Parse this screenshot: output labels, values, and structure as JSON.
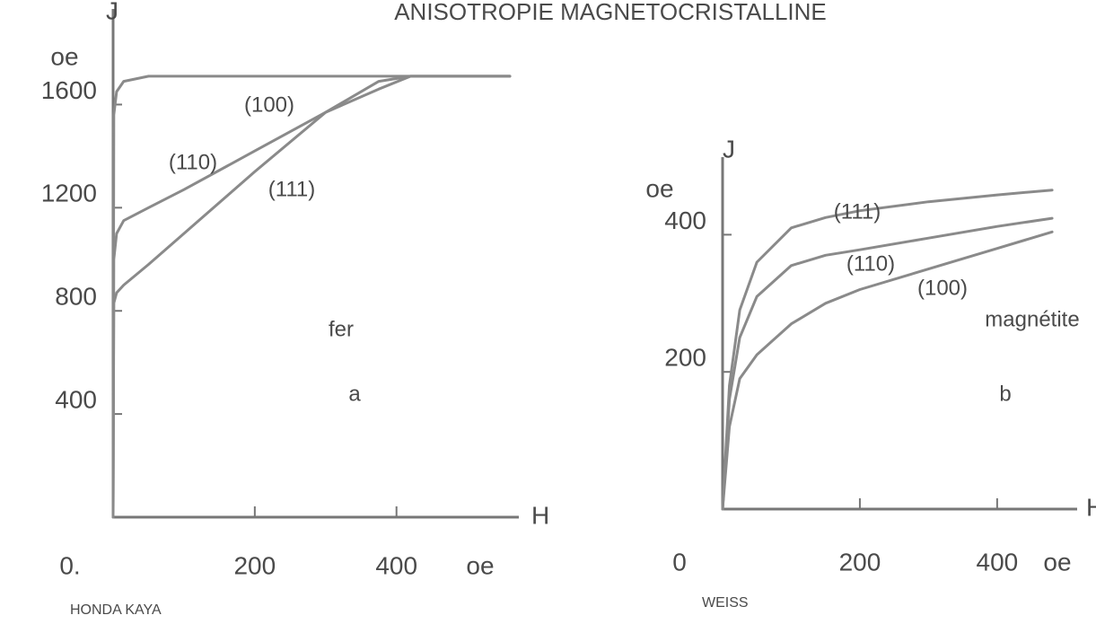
{
  "title": "ANISOTROPIE MAGNETOCRISTALLINE",
  "chart_data": [
    {
      "type": "line",
      "ylabel": "J",
      "yunit": "oe",
      "xlabel": "H",
      "xunit": "oe",
      "xlim": [
        0,
        560
      ],
      "ylim": [
        0,
        1800
      ],
      "xticks": [
        {
          "value": 0,
          "label": "0."
        },
        200,
        400
      ],
      "yticks": [
        400,
        800,
        1200,
        1600
      ],
      "x": [
        0,
        1,
        5,
        15,
        50,
        100,
        200,
        300,
        375,
        420,
        560
      ],
      "series": [
        {
          "name": "(100)",
          "color": "#8a8a8a",
          "values": [
            0,
            1560,
            1650,
            1690,
            1710,
            1710,
            1710,
            1710,
            1710,
            1710,
            1710
          ]
        },
        {
          "name": "(110)",
          "color": "#8a8a8a",
          "values": [
            0,
            1000,
            1100,
            1150,
            1200,
            1270,
            1420,
            1570,
            1690,
            1710,
            1710
          ]
        },
        {
          "name": "(111)",
          "color": "#8a8a8a",
          "values": [
            0,
            830,
            870,
            900,
            980,
            1100,
            1340,
            1570,
            1660,
            1710,
            1710
          ]
        }
      ],
      "annotations": [
        "fer",
        "a"
      ],
      "source": "HONDA KAYA"
    },
    {
      "type": "line",
      "ylabel": "J",
      "yunit": "oe",
      "xlabel": "H",
      "xunit": "oe",
      "xlim": [
        0,
        510
      ],
      "ylim": [
        0,
        500
      ],
      "xticks": [
        0,
        200,
        400
      ],
      "yticks": [
        200,
        400
      ],
      "x": [
        0,
        10,
        25,
        50,
        100,
        150,
        200,
        300,
        400,
        480
      ],
      "series": [
        {
          "name": "(111)",
          "color": "#8a8a8a",
          "values": [
            0,
            180,
            290,
            360,
            410,
            425,
            435,
            448,
            458,
            465
          ]
        },
        {
          "name": "(110)",
          "color": "#8a8a8a",
          "values": [
            0,
            160,
            250,
            310,
            355,
            370,
            378,
            395,
            412,
            424
          ]
        },
        {
          "name": "(100)",
          "color": "#8a8a8a",
          "values": [
            0,
            120,
            190,
            225,
            270,
            300,
            320,
            350,
            380,
            404
          ]
        }
      ],
      "annotations": [
        "magnétite",
        "b"
      ],
      "source": "WEISS"
    }
  ]
}
